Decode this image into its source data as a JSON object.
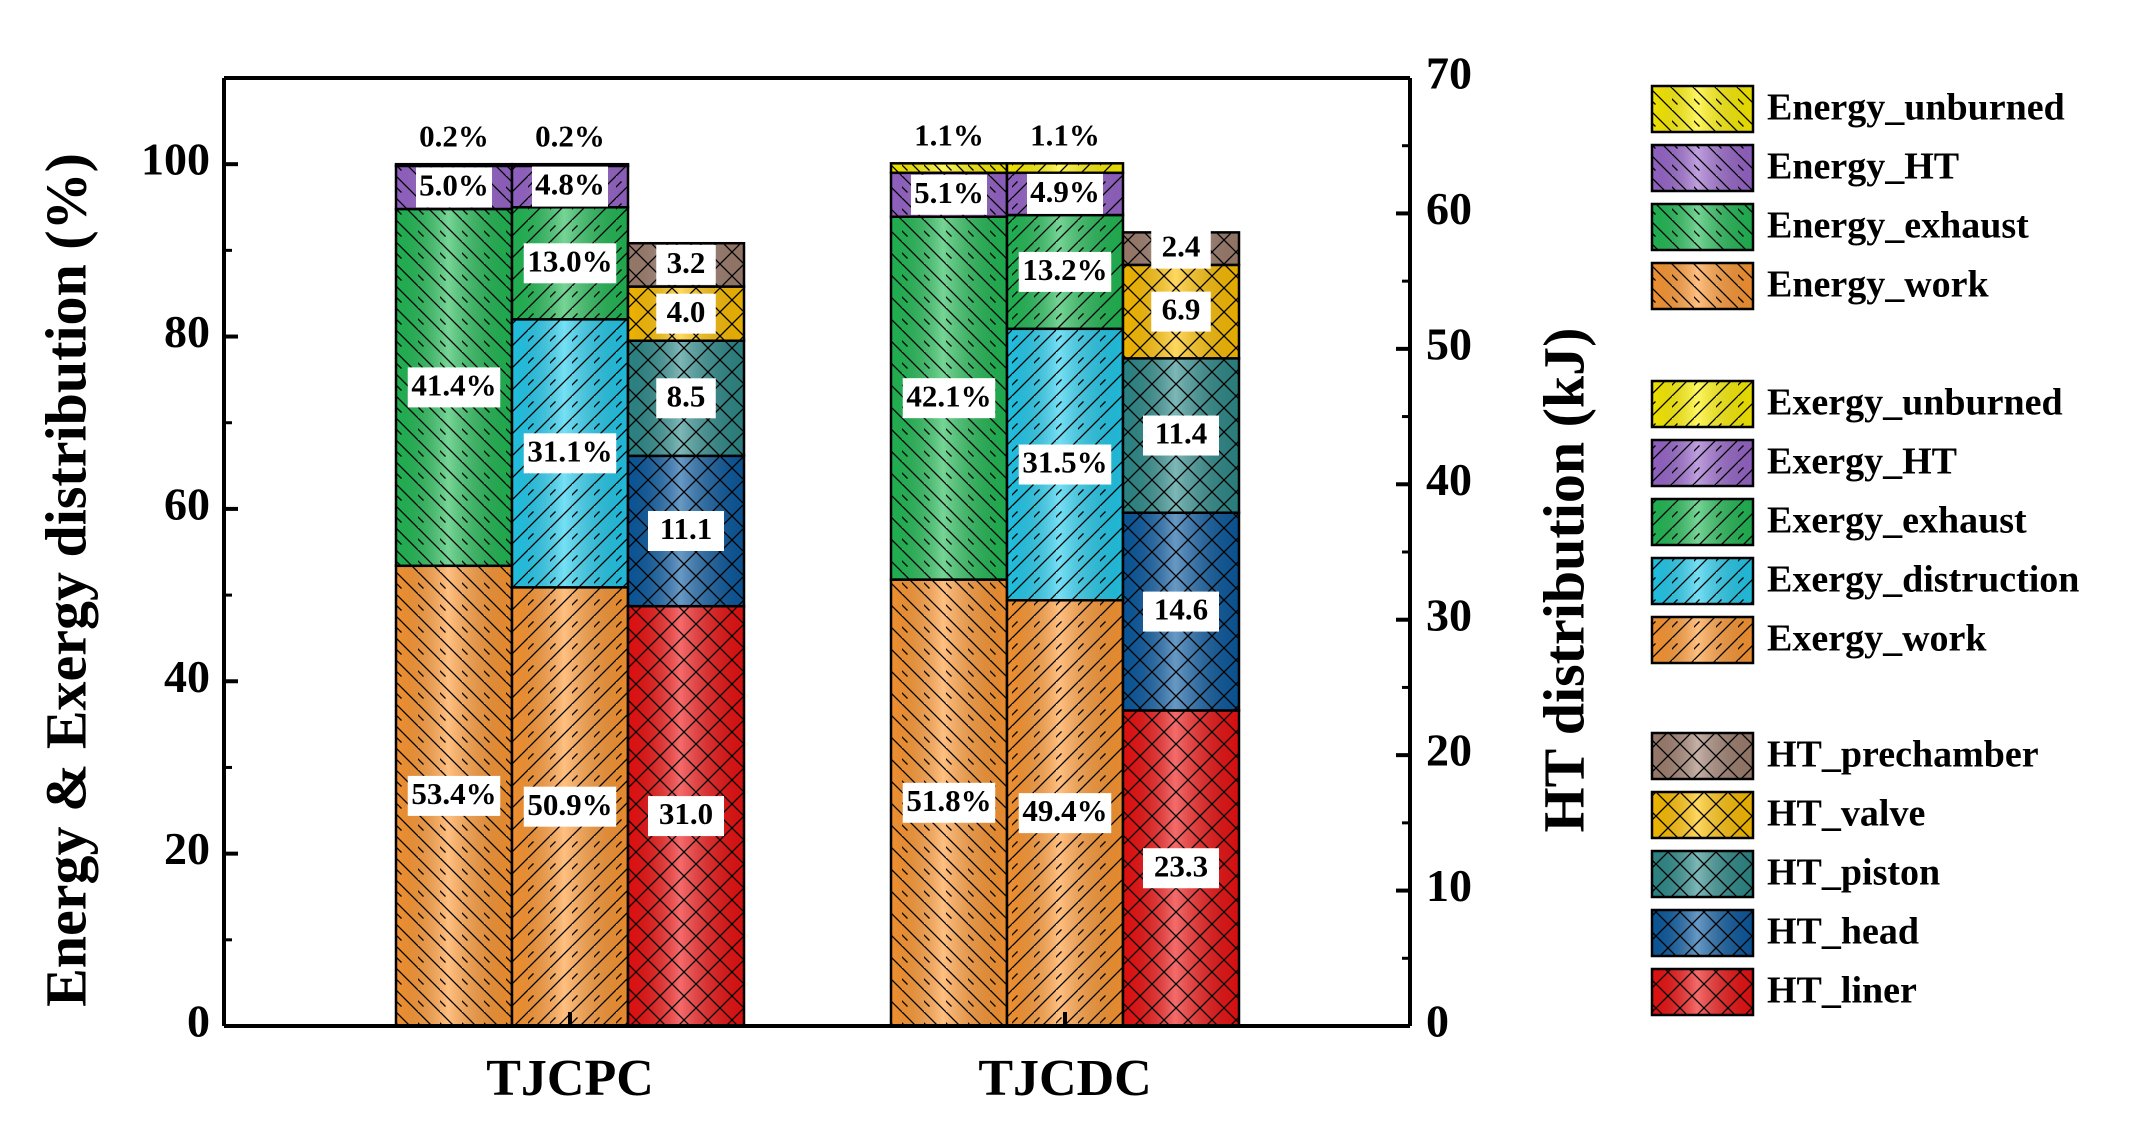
{
  "chart_data": {
    "type": "bar",
    "categories": [
      "TJCPC",
      "TJCDC"
    ],
    "ylabel": "Energy & Exergy distribution (%)",
    "y2label": "HT distribution (kJ)",
    "ylim": [
      0,
      110
    ],
    "y2lim": [
      0,
      70
    ],
    "yticks": [
      "0",
      "20",
      "40",
      "60",
      "80",
      "100"
    ],
    "y2ticks": [
      "0",
      "10",
      "20",
      "30",
      "40",
      "50",
      "60",
      "70"
    ],
    "grid": false,
    "legend_position": "right",
    "colors": {
      "unburned": "#fff200",
      "HT": "#9966cc",
      "exhaust": "#22bb55",
      "distruction": "#22ccee",
      "work": "#ff9933",
      "prechamber": "#a08070",
      "valve": "#ffc000",
      "piston": "#2e8b8b",
      "head": "#0b5aa0",
      "liner": "#ee1111"
    },
    "stacks": [
      {
        "name": "Energy",
        "axis": "left",
        "series": [
          "Energy_work",
          "Energy_exhaust",
          "Energy_HT",
          "Energy_unburned"
        ],
        "keys": [
          "work",
          "exhaust",
          "HT",
          "unburned"
        ],
        "values": [
          [
            53.4,
            41.4,
            5.0,
            0.2
          ],
          [
            51.8,
            42.1,
            5.1,
            1.1
          ]
        ],
        "labels": [
          [
            "53.4%",
            "41.4%",
            "5.0%",
            "0.2%"
          ],
          [
            "51.8%",
            "42.1%",
            "5.1%",
            "1.1%"
          ]
        ]
      },
      {
        "name": "Exergy",
        "axis": "left",
        "series": [
          "Exergy_work",
          "Exergy_distruction",
          "Exergy_exhaust",
          "Exergy_HT",
          "Exergy_unburned"
        ],
        "keys": [
          "work",
          "distruction",
          "exhaust",
          "HT",
          "unburned"
        ],
        "values": [
          [
            50.9,
            31.1,
            13.0,
            4.8,
            0.2
          ],
          [
            49.4,
            31.5,
            13.2,
            4.9,
            1.1
          ]
        ],
        "labels": [
          [
            "50.9%",
            "31.1%",
            "13.0%",
            "4.8%",
            "0.2%"
          ],
          [
            "49.4%",
            "31.5%",
            "13.2%",
            "4.9%",
            "1.1%"
          ]
        ]
      },
      {
        "name": "HT",
        "axis": "right",
        "series": [
          "HT_liner",
          "HT_head",
          "HT_piston",
          "HT_valve",
          "HT_prechamber"
        ],
        "keys": [
          "liner",
          "head",
          "piston",
          "valve",
          "prechamber"
        ],
        "values": [
          [
            31.0,
            11.1,
            8.5,
            4.0,
            3.2
          ],
          [
            23.3,
            14.6,
            11.4,
            6.9,
            2.4
          ]
        ],
        "labels": [
          [
            "31.0",
            "11.1",
            "8.5",
            "4.0",
            "3.2"
          ],
          [
            "23.3",
            "14.6",
            "11.4",
            "6.9",
            "2.4"
          ]
        ]
      }
    ],
    "legend_groups": [
      [
        {
          "label": "Energy_unburned",
          "key": "unburned",
          "hatch": "back"
        },
        {
          "label": "Energy_HT",
          "key": "HT",
          "hatch": "back"
        },
        {
          "label": "Energy_exhaust",
          "key": "exhaust",
          "hatch": "back"
        },
        {
          "label": "Energy_work",
          "key": "work",
          "hatch": "back"
        }
      ],
      [
        {
          "label": "Exergy_unburned",
          "key": "unburned",
          "hatch": "fwd"
        },
        {
          "label": "Exergy_HT",
          "key": "HT",
          "hatch": "fwd"
        },
        {
          "label": "Exergy_exhaust",
          "key": "exhaust",
          "hatch": "fwd"
        },
        {
          "label": "Exergy_distruction",
          "key": "distruction",
          "hatch": "fwd"
        },
        {
          "label": "Exergy_work",
          "key": "work",
          "hatch": "fwd"
        }
      ],
      [
        {
          "label": "HT_prechamber",
          "key": "prechamber",
          "hatch": "cross"
        },
        {
          "label": "HT_valve",
          "key": "valve",
          "hatch": "cross"
        },
        {
          "label": "HT_piston",
          "key": "piston",
          "hatch": "cross"
        },
        {
          "label": "HT_head",
          "key": "head",
          "hatch": "cross"
        },
        {
          "label": "HT_liner",
          "key": "liner",
          "hatch": "cross"
        }
      ]
    ]
  }
}
